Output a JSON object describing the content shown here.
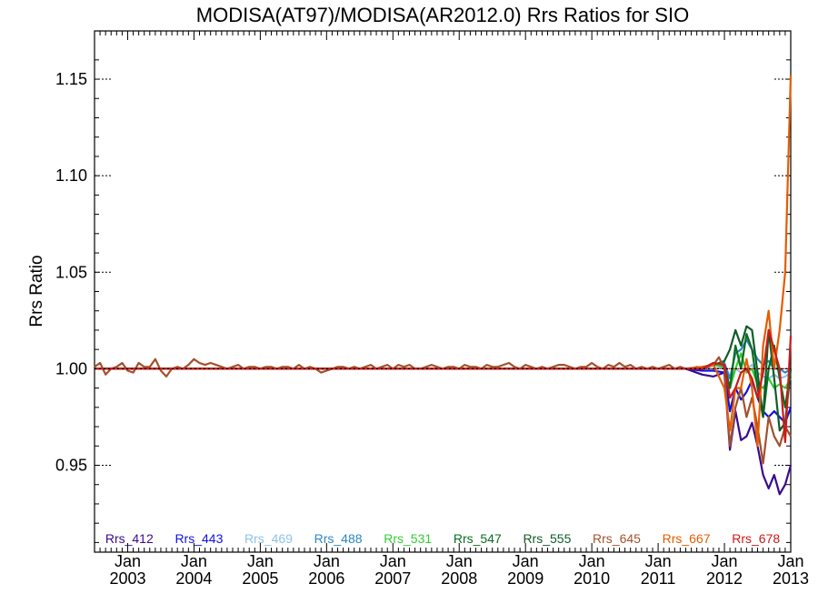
{
  "chart_data": {
    "type": "line",
    "title": "MODISA(AT97)/MODISA(AR2012.0)  Rrs Ratios for SIO",
    "xlabel": "",
    "ylabel": "Rrs Ratio",
    "xlim": [
      "2002-07",
      "2013-01"
    ],
    "ylim": [
      0.905,
      1.175
    ],
    "yticks": [
      0.95,
      1.0,
      1.05,
      1.1,
      1.15
    ],
    "ytick_labels": [
      "0.95",
      "1.00",
      "1.05",
      "1.10",
      "1.15"
    ],
    "xticks": [
      "2003-01",
      "2004-01",
      "2005-01",
      "2006-01",
      "2007-01",
      "2008-01",
      "2009-01",
      "2010-01",
      "2011-01",
      "2012-01",
      "2013-01"
    ],
    "xtick_labels": [
      [
        "Jan",
        "2003"
      ],
      [
        "Jan",
        "2004"
      ],
      [
        "Jan",
        "2005"
      ],
      [
        "Jan",
        "2006"
      ],
      [
        "Jan",
        "2007"
      ],
      [
        "Jan",
        "2008"
      ],
      [
        "Jan",
        "2009"
      ],
      [
        "Jan",
        "2010"
      ],
      [
        "Jan",
        "2011"
      ],
      [
        "Jan",
        "2012"
      ],
      [
        "Jan",
        "2013"
      ]
    ],
    "reference_line": 1.0,
    "legend_position": "bottom, inside plot",
    "series": [
      {
        "name": "Rrs_412",
        "color": "#3a0a8c",
        "x": [
          "2002-07",
          "2011-06",
          "2011-09",
          "2011-11",
          "2012-01",
          "2012-02",
          "2012-03",
          "2012-04",
          "2012-05",
          "2012-06",
          "2012-07",
          "2012-08",
          "2012-09",
          "2012-10",
          "2012-11",
          "2012-12",
          "2013-01"
        ],
        "values": [
          1.0,
          1.0,
          0.997,
          0.996,
          0.998,
          0.958,
          0.978,
          0.963,
          0.965,
          0.972,
          0.96,
          0.945,
          0.938,
          0.945,
          0.935,
          0.94,
          0.95
        ]
      },
      {
        "name": "Rrs_443",
        "color": "#1010e0",
        "x": [
          "2002-07",
          "2011-06",
          "2011-09",
          "2011-11",
          "2012-01",
          "2012-02",
          "2012-03",
          "2012-04",
          "2012-05",
          "2012-06",
          "2012-07",
          "2012-08",
          "2012-09",
          "2012-10",
          "2012-11",
          "2012-12",
          "2013-01"
        ],
        "values": [
          1.0,
          1.0,
          0.999,
          0.999,
          0.998,
          0.978,
          0.99,
          0.984,
          0.988,
          0.994,
          0.985,
          0.978,
          0.975,
          0.978,
          0.975,
          0.972,
          0.98
        ]
      },
      {
        "name": "Rrs_469",
        "color": "#8fc3e8",
        "x": [
          "2002-07",
          "2011-06",
          "2011-09",
          "2011-11",
          "2012-01",
          "2012-02",
          "2012-03",
          "2012-04",
          "2012-05",
          "2012-06",
          "2012-07",
          "2012-08",
          "2012-09",
          "2012-10",
          "2012-11",
          "2012-12",
          "2013-01"
        ],
        "values": [
          1.0,
          1.0,
          1.0,
          1.0,
          1.001,
          0.995,
          1.0,
          0.998,
          1.0,
          1.002,
          0.998,
          0.996,
          0.995,
          0.997,
          0.995,
          0.996,
          0.998
        ]
      },
      {
        "name": "Rrs_488",
        "color": "#2e86c1",
        "x": [
          "2002-07",
          "2011-06",
          "2011-09",
          "2011-11",
          "2012-01",
          "2012-02",
          "2012-03",
          "2012-04",
          "2012-05",
          "2012-06",
          "2012-07",
          "2012-08",
          "2012-09",
          "2012-10",
          "2012-11",
          "2012-12",
          "2013-01"
        ],
        "values": [
          1.0,
          1.0,
          1.001,
          1.002,
          1.003,
          0.995,
          1.008,
          1.01,
          1.015,
          1.01,
          1.005,
          1.002,
          1.004,
          1.0,
          1.0,
          0.998,
          1.0
        ]
      },
      {
        "name": "Rrs_531",
        "color": "#33cc33",
        "x": [
          "2002-07",
          "2011-06",
          "2011-09",
          "2011-11",
          "2012-01",
          "2012-02",
          "2012-03",
          "2012-04",
          "2012-05",
          "2012-06",
          "2012-07",
          "2012-08",
          "2012-09",
          "2012-10",
          "2012-11",
          "2012-12",
          "2013-01"
        ],
        "values": [
          1.0,
          1.0,
          1.0,
          1.002,
          1.001,
          0.99,
          1.0,
          1.008,
          0.998,
          1.0,
          0.992,
          0.99,
          0.995,
          0.99,
          0.992,
          0.99,
          0.995
        ]
      },
      {
        "name": "Rrs_547",
        "color": "#0a6e1e",
        "x": [
          "2002-07",
          "2011-06",
          "2011-09",
          "2011-11",
          "2012-01",
          "2012-02",
          "2012-03",
          "2012-04",
          "2012-05",
          "2012-06",
          "2012-07",
          "2012-08",
          "2012-09",
          "2012-10",
          "2012-11",
          "2012-12",
          "2013-01"
        ],
        "values": [
          1.0,
          1.0,
          1.0,
          1.003,
          1.002,
          0.99,
          1.012,
          1.0,
          1.018,
          1.01,
          0.99,
          0.975,
          1.0,
          1.012,
          0.995,
          0.98,
          1.0
        ]
      },
      {
        "name": "Rrs_555",
        "color": "#0f5c28",
        "x": [
          "2002-07",
          "2011-06",
          "2011-09",
          "2011-11",
          "2012-01",
          "2012-02",
          "2012-03",
          "2012-04",
          "2012-05",
          "2012-06",
          "2012-07",
          "2012-08",
          "2012-09",
          "2012-10",
          "2012-11",
          "2012-12",
          "2013-01"
        ],
        "values": [
          1.0,
          1.0,
          1.0,
          1.002,
          1.004,
          1.01,
          1.02,
          1.012,
          1.022,
          1.02,
          0.998,
          0.975,
          1.02,
          0.995,
          0.968,
          0.972,
          1.0
        ]
      },
      {
        "name": "Rrs_645",
        "color": "#a0522d",
        "x": [
          "2002-07",
          "2002-08",
          "2002-09",
          "2002-10",
          "2002-11",
          "2002-12",
          "2003-01",
          "2003-02",
          "2003-03",
          "2003-04",
          "2003-05",
          "2003-06",
          "2003-07",
          "2003-08",
          "2003-09",
          "2003-10",
          "2003-11",
          "2003-12",
          "2004-01",
          "2004-02",
          "2004-03",
          "2004-04",
          "2004-05",
          "2004-06",
          "2004-07",
          "2004-08",
          "2004-09",
          "2004-10",
          "2004-11",
          "2004-12",
          "2005-01",
          "2005-02",
          "2005-03",
          "2005-04",
          "2005-05",
          "2005-06",
          "2005-07",
          "2005-08",
          "2005-09",
          "2005-10",
          "2005-11",
          "2005-12",
          "2006-01",
          "2006-02",
          "2006-03",
          "2006-04",
          "2006-05",
          "2006-06",
          "2006-07",
          "2006-08",
          "2006-09",
          "2006-10",
          "2006-11",
          "2006-12",
          "2007-01",
          "2007-02",
          "2007-03",
          "2007-04",
          "2007-05",
          "2007-06",
          "2007-07",
          "2007-08",
          "2007-09",
          "2007-10",
          "2007-11",
          "2007-12",
          "2008-01",
          "2008-02",
          "2008-03",
          "2008-04",
          "2008-05",
          "2008-06",
          "2008-07",
          "2008-08",
          "2008-09",
          "2008-10",
          "2008-11",
          "2008-12",
          "2009-01",
          "2009-02",
          "2009-03",
          "2009-04",
          "2009-05",
          "2009-06",
          "2009-07",
          "2009-08",
          "2009-09",
          "2009-10",
          "2009-11",
          "2009-12",
          "2010-01",
          "2010-02",
          "2010-03",
          "2010-04",
          "2010-05",
          "2010-06",
          "2010-07",
          "2010-08",
          "2010-09",
          "2010-10",
          "2010-11",
          "2010-12",
          "2011-01",
          "2011-02",
          "2011-03",
          "2011-04",
          "2011-05",
          "2011-06",
          "2011-07",
          "2011-08",
          "2011-09",
          "2011-10",
          "2011-11",
          "2011-12",
          "2012-01",
          "2012-02",
          "2012-03",
          "2012-04",
          "2012-05",
          "2012-06",
          "2012-07",
          "2012-08",
          "2012-09",
          "2012-10",
          "2012-11",
          "2012-12",
          "2013-01"
        ],
        "values": [
          1.001,
          1.003,
          0.997,
          1.0,
          1.001,
          1.003,
          0.999,
          0.998,
          1.003,
          1.001,
          1.001,
          1.005,
          0.999,
          0.996,
          1.0,
          1.001,
          1.0,
          1.002,
          1.005,
          1.003,
          1.002,
          1.003,
          1.002,
          1.001,
          1.0,
          1.001,
          1.002,
          1.0,
          1.001,
          1.001,
          1.0,
          1.001,
          1.001,
          1.0,
          1.001,
          1.001,
          1.0,
          1.002,
          1.0,
          1.001,
          1.0,
          0.998,
          0.999,
          1.0,
          1.001,
          1.001,
          1.0,
          1.001,
          1.0,
          1.001,
          1.002,
          1.0,
          1.001,
          1.002,
          1.0,
          1.002,
          1.001,
          1.002,
          1.0,
          1.0,
          1.001,
          1.002,
          1.001,
          1.0,
          1.001,
          1.001,
          1.0,
          1.002,
          1.001,
          1.001,
          1.0,
          1.002,
          1.001,
          1.001,
          1.002,
          1.003,
          1.001,
          1.0,
          1.002,
          1.001,
          1.0,
          1.001,
          1.0,
          1.001,
          1.002,
          1.002,
          1.001,
          1.0,
          1.001,
          1.001,
          1.003,
          1.001,
          1.0,
          1.002,
          1.001,
          1.003,
          1.001,
          1.002,
          1.0,
          1.001,
          1.0,
          1.001,
          1.0,
          1.001,
          1.002,
          1.0,
          1.001,
          1.0,
          1.0,
          1.001,
          1.0,
          1.001,
          1.002,
          1.006,
          1.0,
          0.96,
          0.98,
          0.99,
          0.975,
          0.985,
          0.97,
          0.951,
          0.975,
          0.965,
          0.96,
          0.97,
          0.965
        ]
      },
      {
        "name": "Rrs_667",
        "color": "#e65c00",
        "x": [
          "2002-07",
          "2011-06",
          "2011-09",
          "2011-11",
          "2012-01",
          "2012-02",
          "2012-03",
          "2012-04",
          "2012-05",
          "2012-06",
          "2012-07",
          "2012-08",
          "2012-09",
          "2012-10",
          "2012-11",
          "2012-12",
          "2013-01"
        ],
        "values": [
          1.0,
          1.0,
          1.001,
          1.002,
          0.99,
          0.968,
          0.99,
          0.99,
          1.005,
          0.99,
          0.96,
          1.012,
          1.03,
          1.0,
          1.02,
          1.05,
          1.152
        ]
      },
      {
        "name": "Rrs_678",
        "color": "#cc1a1a",
        "x": [
          "2002-07",
          "2011-06",
          "2011-09",
          "2011-11",
          "2012-01",
          "2012-02",
          "2012-03",
          "2012-04",
          "2012-05",
          "2012-06",
          "2012-07",
          "2012-08",
          "2012-09",
          "2012-10",
          "2012-11",
          "2012-12",
          "2013-01"
        ],
        "values": [
          1.0,
          1.0,
          1.0,
          1.003,
          1.002,
          0.985,
          0.99,
          0.998,
          1.0,
          0.995,
          0.985,
          0.998,
          1.02,
          1.01,
          1.0,
          0.962,
          1.017
        ]
      }
    ]
  }
}
